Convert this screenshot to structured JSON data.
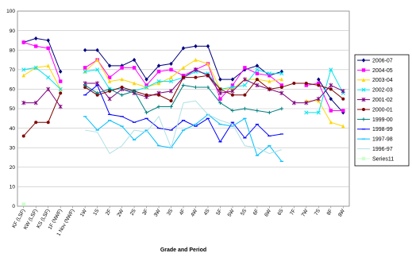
{
  "chart_data": {
    "type": "line",
    "xlabel": "Grade and Period",
    "ylabel": "",
    "ylim": [
      0,
      100
    ],
    "yticks": [
      0,
      10,
      20,
      30,
      40,
      50,
      60,
      70,
      80,
      90,
      100
    ],
    "grid": "horizontal",
    "legend_position": "right",
    "categories": [
      "KF (LSF)",
      "KW (LSF)",
      "KS (LSF)",
      "1F (NWF)",
      "1 Nov (NWF)",
      "1W",
      "1S",
      "2F",
      "2W",
      "2S",
      "3F",
      "3W",
      "3S",
      "4F",
      "4W",
      "4S",
      "5F",
      "5W",
      "5S",
      "6F",
      "6W",
      "6S",
      "7F",
      "7W",
      "7S",
      "8F",
      "8W"
    ],
    "series": [
      {
        "name": "2006-07",
        "color": "#000080",
        "marker": "diamond",
        "values": [
          84,
          86,
          85,
          69,
          null,
          80,
          80,
          72,
          72,
          75,
          65,
          72,
          73,
          81,
          82,
          82,
          65,
          65,
          70,
          72,
          67,
          69,
          null,
          null,
          65,
          55,
          48
        ]
      },
      {
        "name": "2004-05",
        "color": "#ff00ff",
        "marker": "square",
        "values": [
          84,
          82,
          81,
          64,
          null,
          71,
          75,
          66,
          71,
          71,
          62,
          69,
          70,
          67,
          70,
          73,
          55,
          62,
          71,
          68,
          67,
          62,
          null,
          62,
          63,
          49,
          49
        ]
      },
      {
        "name": "2003-04",
        "color": "#ffd700",
        "marker": "triangle",
        "values": [
          67,
          71,
          72,
          60,
          null,
          69,
          75,
          64,
          65,
          63,
          61,
          63,
          66,
          71,
          75,
          73,
          60,
          60,
          65,
          65,
          64,
          65,
          null,
          54,
          54,
          43,
          41
        ]
      },
      {
        "name": "2002-03",
        "color": "#00e5ee",
        "marker": "cross",
        "values": [
          70,
          71,
          66,
          60,
          null,
          69,
          70,
          60,
          60,
          59,
          61,
          64,
          64,
          66,
          69,
          68,
          60,
          61,
          62,
          70,
          68,
          68,
          null,
          48,
          48,
          70,
          58
        ]
      },
      {
        "name": "2001-02",
        "color": "#800080",
        "marker": "star",
        "values": [
          53,
          53,
          60,
          51,
          null,
          63,
          63,
          55,
          60,
          58,
          56,
          58,
          59,
          66,
          70,
          67,
          58,
          59,
          65,
          62,
          60,
          58,
          53,
          53,
          55,
          62,
          59
        ]
      },
      {
        "name": "2000-01",
        "color": "#800000",
        "marker": "circle",
        "values": [
          36,
          43,
          43,
          58,
          null,
          61,
          57,
          59,
          61,
          59,
          57,
          57,
          54,
          66,
          66,
          67,
          60,
          57,
          57,
          65,
          60,
          61,
          63,
          63,
          62,
          60,
          55
        ]
      },
      {
        "name": "1999-00",
        "color": "#008080",
        "marker": "plus",
        "values": [
          null,
          null,
          null,
          null,
          null,
          62,
          58,
          60,
          57,
          59,
          48,
          51,
          51,
          62,
          61,
          61,
          53,
          49,
          50,
          49,
          48,
          50,
          null,
          null,
          null,
          null,
          null
        ]
      },
      {
        "name": "1998-99",
        "color": "#0000ff",
        "marker": "dash",
        "values": [
          null,
          null,
          null,
          null,
          null,
          57,
          62,
          47,
          46,
          43,
          45,
          40,
          39,
          44,
          41,
          45,
          33,
          43,
          35,
          42,
          36,
          37,
          null,
          null,
          null,
          null,
          null
        ]
      },
      {
        "name": "1997-98",
        "color": "#00bfff",
        "marker": "dash",
        "values": [
          null,
          null,
          null,
          null,
          null,
          46,
          39,
          44,
          41,
          34,
          39,
          31,
          30,
          39,
          42,
          47,
          42,
          41,
          45,
          26,
          31,
          23,
          null,
          null,
          null,
          null,
          null
        ]
      },
      {
        "name": "1996-97",
        "color": "#b0e0e6",
        "marker": "none",
        "values": [
          null,
          null,
          null,
          null,
          null,
          39,
          38,
          27,
          31,
          39,
          38,
          46,
          30,
          53,
          54,
          47,
          44,
          42,
          31,
          30,
          27,
          29,
          null,
          null,
          null,
          null,
          null
        ]
      },
      {
        "name": "Series11",
        "color": "#ccffcc",
        "marker": "square",
        "values": [
          1,
          null,
          null,
          null,
          null,
          null,
          null,
          null,
          null,
          null,
          null,
          null,
          null,
          null,
          null,
          null,
          null,
          null,
          null,
          null,
          null,
          null,
          null,
          null,
          null,
          null,
          null
        ]
      }
    ]
  }
}
